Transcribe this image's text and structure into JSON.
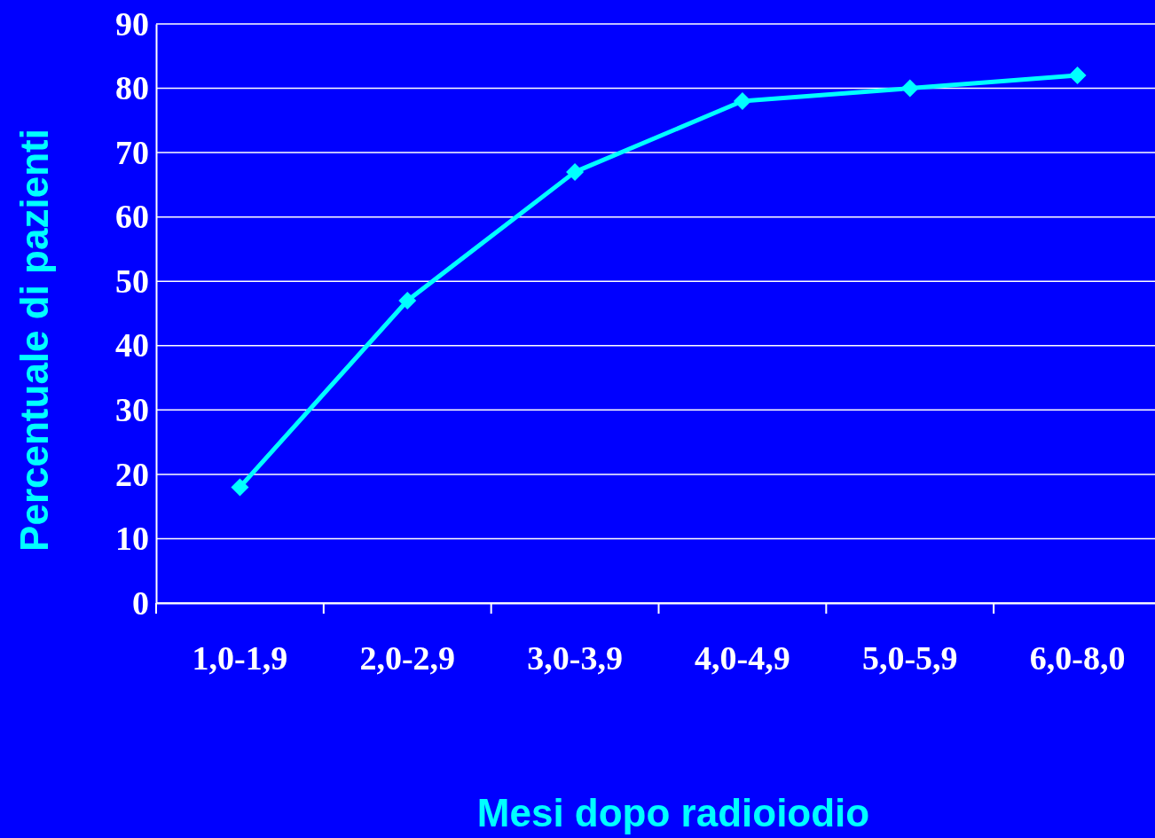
{
  "chart_data": {
    "type": "line",
    "xlabel": "Mesi dopo radioiodio",
    "ylabel": "Percentuale di pazienti",
    "categories": [
      "1,0-1,9",
      "2,0-2,9",
      "3,0-3,9",
      "4,0-4,9",
      "5,0-5,9",
      "6,0-8,0"
    ],
    "series": [
      {
        "color": "#00ffff",
        "values": [
          18,
          47,
          67,
          78,
          80,
          82
        ]
      }
    ],
    "ylim": [
      0,
      90
    ],
    "yticks": [
      0,
      10,
      20,
      30,
      40,
      50,
      60,
      70,
      80,
      90
    ],
    "grid": "y",
    "marker": "diamond",
    "line_style": "solid"
  }
}
